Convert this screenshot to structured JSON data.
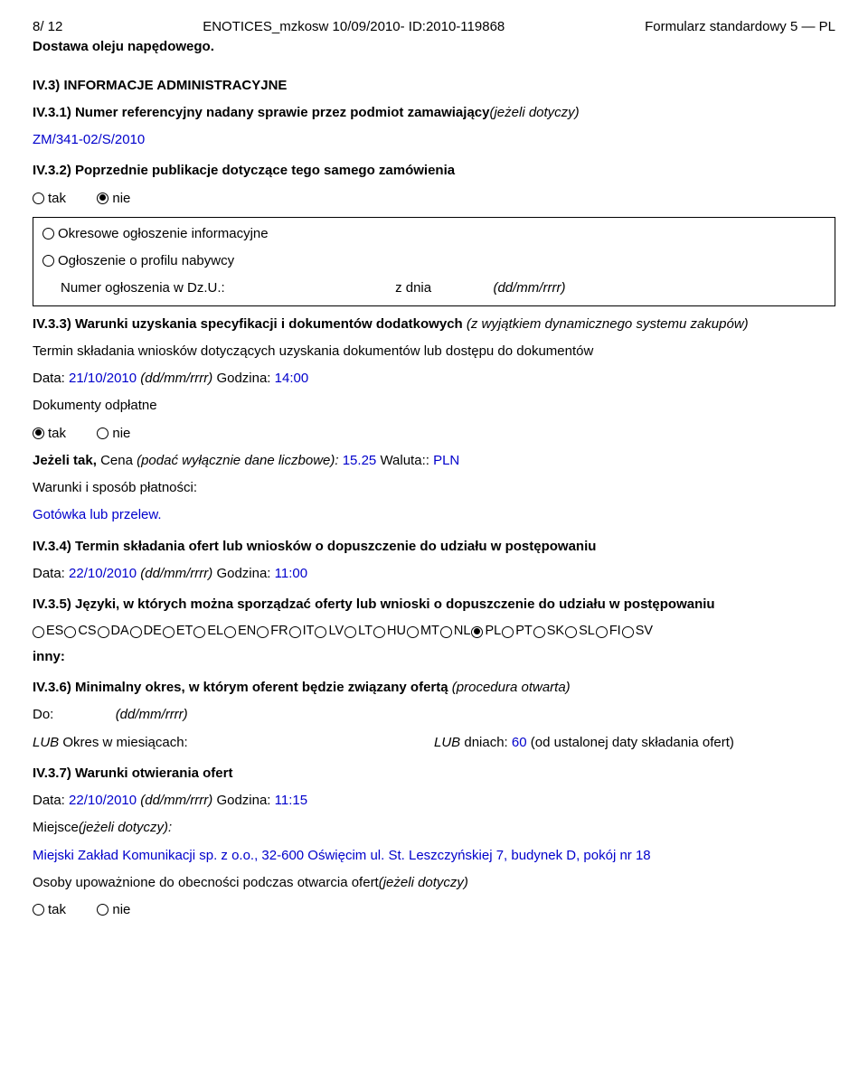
{
  "header": {
    "left": "8/ 12",
    "center": "ENOTICES_mzkosw 10/09/2010- ID:2010-119868",
    "right": "Formularz standardowy 5 — PL"
  },
  "subtitle": "Dostawa oleju napędowego.",
  "iv3": {
    "title": "IV.3) INFORMACJE ADMINISTRACYJNE",
    "s1": {
      "heading": "IV.3.1) Numer referencyjny nadany sprawie przez podmiot zamawiający",
      "suffix": "(jeżeli dotyczy)",
      "ref": "ZM/341-02/S/2010"
    },
    "s2": {
      "heading": "IV.3.2) Poprzednie publikacje dotyczące tego samego zamówienia",
      "yes": "tak",
      "no": "nie",
      "box": {
        "line1": "Okresowe ogłoszenie informacyjne",
        "line2": "Ogłoszenie o profilu nabywcy",
        "num_label": "Numer ogłoszenia w Dz.U.:",
        "zdnia": "z dnia",
        "dd": "(dd/mm/rrrr)"
      }
    },
    "s3": {
      "heading": "IV.3.3) Warunki uzyskania specyfikacji i dokumentów dodatkowych ",
      "suffix": "(z wyjątkiem dynamicznego systemu zakupów)",
      "term_line": "Termin składania wniosków dotyczących uzyskania dokumentów lub dostępu do dokumentów",
      "date_label": "Data:",
      "date_val": "21/10/2010",
      "dd": "(dd/mm/rrrr)",
      "time_label": "Godzina:",
      "time_val": "14:00",
      "paid_label": "Dokumenty odpłatne",
      "yes": "tak",
      "no": "nie",
      "price_label": "Jeżeli tak,",
      "price_text": "Cena",
      "price_paren": "(podać wyłącznie dane liczbowe):",
      "price_val": "15.25",
      "currency_label": "Waluta::",
      "currency_val": "PLN",
      "pay_terms": "Warunki i sposób płatności:",
      "pay_val": "Gotówka lub przelew."
    },
    "s4": {
      "heading": "IV.3.4) Termin składania ofert lub wniosków o dopuszczenie do udziału w postępowaniu",
      "date_label": "Data:",
      "date_val": "22/10/2010",
      "dd": "(dd/mm/rrrr)",
      "time_label": "Godzina:",
      "time_val": "11:00"
    },
    "s5": {
      "heading": "IV.3.5) Języki, w których można sporządzać oferty lub wnioski o dopuszczenie do udziału w postępowaniu",
      "langs": [
        "ES",
        "CS",
        "DA",
        "DE",
        "ET",
        "EL",
        "EN",
        "FR",
        "IT",
        "LV",
        "LT",
        "HU",
        "MT",
        "NL",
        "PL",
        "PT",
        "SK",
        "SL",
        "FI",
        "SV"
      ],
      "selected": "PL",
      "other": "inny:"
    },
    "s6": {
      "heading": "IV.3.6) Minimalny okres, w którym oferent będzie związany ofertą ",
      "suffix": "(procedura otwarta)",
      "do": "Do:",
      "dd": "(dd/mm/rrrr)",
      "lub1": "LUB",
      "months": "Okres w miesiącach:",
      "lub2": "LUB",
      "days_label": "dniach:",
      "days_val": "60",
      "days_suffix": "(od ustalonej daty składania ofert)"
    },
    "s7": {
      "heading": "IV.3.7) Warunki otwierania ofert",
      "date_label": "Data:",
      "date_val": "22/10/2010",
      "dd": "(dd/mm/rrrr)",
      "time_label": "Godzina:",
      "time_val": "11:15",
      "place_label": "Miejsce",
      "place_suffix": "(jeżeli dotyczy):",
      "place_val": "Miejski Zakład Komunikacji sp. z o.o., 32-600 Oświęcim ul. St. Leszczyńskiej 7, budynek D, pokój nr 18",
      "persons_label": "Osoby upoważnione do obecności podczas otwarcia ofert",
      "persons_suffix": "(jeżeli dotyczy)",
      "yes": "tak",
      "no": "nie"
    }
  }
}
